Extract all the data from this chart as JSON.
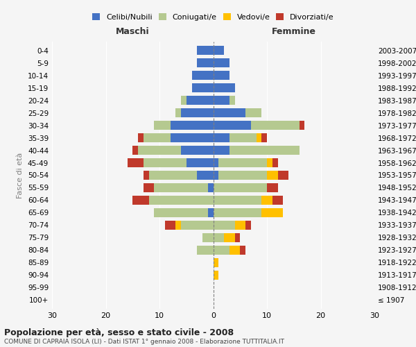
{
  "age_groups": [
    "100+",
    "95-99",
    "90-94",
    "85-89",
    "80-84",
    "75-79",
    "70-74",
    "65-69",
    "60-64",
    "55-59",
    "50-54",
    "45-49",
    "40-44",
    "35-39",
    "30-34",
    "25-29",
    "20-24",
    "15-19",
    "10-14",
    "5-9",
    "0-4"
  ],
  "birth_years": [
    "≤ 1907",
    "1908-1912",
    "1913-1917",
    "1918-1922",
    "1923-1927",
    "1928-1932",
    "1933-1937",
    "1938-1942",
    "1943-1947",
    "1948-1952",
    "1953-1957",
    "1958-1962",
    "1963-1967",
    "1968-1972",
    "1973-1977",
    "1978-1982",
    "1983-1987",
    "1988-1992",
    "1993-1997",
    "1998-2002",
    "2003-2007"
  ],
  "colors": {
    "celibi": "#4472c4",
    "coniugati": "#b5c990",
    "vedovi": "#ffc000",
    "divorziati": "#c0392b"
  },
  "maschi": {
    "celibi": [
      0,
      0,
      0,
      0,
      0,
      0,
      0,
      1,
      0,
      1,
      3,
      5,
      6,
      8,
      8,
      6,
      5,
      4,
      4,
      3,
      3
    ],
    "coniugati": [
      0,
      0,
      0,
      0,
      3,
      2,
      6,
      10,
      12,
      10,
      9,
      8,
      8,
      5,
      3,
      1,
      1,
      0,
      0,
      0,
      0
    ],
    "vedovi": [
      0,
      0,
      0,
      0,
      0,
      0,
      1,
      0,
      0,
      0,
      0,
      0,
      0,
      0,
      0,
      0,
      0,
      0,
      0,
      0,
      0
    ],
    "divorziati": [
      0,
      0,
      0,
      0,
      0,
      0,
      2,
      0,
      3,
      2,
      1,
      3,
      1,
      1,
      0,
      0,
      0,
      0,
      0,
      0,
      0
    ]
  },
  "femmine": {
    "celibi": [
      0,
      0,
      0,
      0,
      0,
      0,
      0,
      0,
      0,
      0,
      1,
      1,
      3,
      3,
      7,
      6,
      3,
      4,
      3,
      3,
      2
    ],
    "coniugati": [
      0,
      0,
      0,
      0,
      3,
      2,
      4,
      9,
      9,
      10,
      9,
      9,
      13,
      5,
      9,
      3,
      1,
      0,
      0,
      0,
      0
    ],
    "vedovi": [
      0,
      0,
      1,
      1,
      2,
      2,
      2,
      4,
      2,
      0,
      2,
      1,
      0,
      1,
      0,
      0,
      0,
      0,
      0,
      0,
      0
    ],
    "divorziati": [
      0,
      0,
      0,
      0,
      1,
      1,
      1,
      0,
      2,
      2,
      2,
      1,
      0,
      1,
      1,
      0,
      0,
      0,
      0,
      0,
      0
    ]
  },
  "xlim": 30,
  "title": "Popolazione per età, sesso e stato civile - 2008",
  "subtitle": "COMUNE DI CAPRAIA ISOLA (LI) - Dati ISTAT 1° gennaio 2008 - Elaborazione TUTTITALIA.IT",
  "ylabel_left": "Fasce di età",
  "xlabel_left": "Maschi",
  "xlabel_right": "Femmine",
  "legend_labels": [
    "Celibi/Nubili",
    "Coniugati/e",
    "Vedovi/e",
    "Divorziati/e"
  ],
  "background_color": "#f5f5f5"
}
